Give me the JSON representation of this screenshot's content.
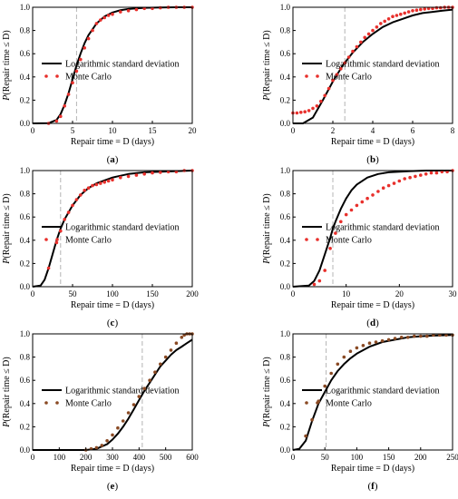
{
  "chart_data": [
    {
      "type": "line",
      "label": "(a)",
      "xlabel": "Repair time = D (days)",
      "ylabel": "P(Repair time ≤ D)",
      "xlim": [
        0,
        20
      ],
      "xticks": [
        0,
        5,
        10,
        15,
        20
      ],
      "ylim": [
        0,
        1
      ],
      "yticks": [
        0.0,
        0.2,
        0.4,
        0.6,
        0.8,
        1.0
      ],
      "median_line": 5.5,
      "legend_position": "center-right",
      "mc_color": "#e8302c",
      "series": [
        {
          "name": "Logarithmic standard deviation",
          "style": "line",
          "x": [
            0,
            2,
            3,
            3.5,
            4,
            4.5,
            5,
            5.5,
            6,
            6.5,
            7,
            8,
            9,
            10,
            11,
            12,
            14,
            16,
            18,
            20
          ],
          "y": [
            0,
            0.002,
            0.03,
            0.08,
            0.16,
            0.26,
            0.38,
            0.5,
            0.6,
            0.69,
            0.76,
            0.86,
            0.92,
            0.955,
            0.975,
            0.985,
            0.995,
            0.998,
            1,
            1
          ]
        },
        {
          "name": "Monte Carlo",
          "style": "dots",
          "x": [
            2,
            3,
            3.5,
            4,
            4.5,
            5,
            5.5,
            6,
            6.5,
            7,
            7.5,
            8,
            8.5,
            9,
            9.5,
            10,
            11,
            12,
            13,
            14,
            15,
            16,
            17,
            18,
            19,
            20
          ],
          "y": [
            0,
            0.02,
            0.06,
            0.15,
            0.25,
            0.35,
            0.45,
            0.55,
            0.65,
            0.73,
            0.8,
            0.86,
            0.89,
            0.91,
            0.93,
            0.94,
            0.96,
            0.97,
            0.98,
            0.99,
            0.99,
            0.995,
            1,
            1,
            1,
            1
          ]
        }
      ]
    },
    {
      "type": "line",
      "label": "(b)",
      "xlabel": "Repair time = D (days)",
      "ylabel": "P(Repair time ≤ D)",
      "xlim": [
        0,
        8
      ],
      "xticks": [
        0,
        2,
        4,
        6,
        8
      ],
      "ylim": [
        0,
        1
      ],
      "yticks": [
        0.0,
        0.2,
        0.4,
        0.6,
        0.8,
        1.0
      ],
      "median_line": 2.6,
      "legend_position": "center-right",
      "mc_color": "#e8302c",
      "series": [
        {
          "name": "Logarithmic standard deviation",
          "style": "line",
          "x": [
            0,
            0.5,
            1,
            1.5,
            2,
            2.5,
            3,
            3.5,
            4,
            4.5,
            5,
            5.5,
            6,
            6.5,
            7,
            7.5,
            8
          ],
          "y": [
            0,
            0,
            0.05,
            0.2,
            0.36,
            0.5,
            0.61,
            0.7,
            0.77,
            0.83,
            0.87,
            0.9,
            0.93,
            0.95,
            0.96,
            0.97,
            0.98
          ]
        },
        {
          "name": "Monte Carlo",
          "style": "dots",
          "x": [
            0,
            0.2,
            0.4,
            0.6,
            0.8,
            1,
            1.2,
            1.4,
            1.6,
            1.8,
            2,
            2.2,
            2.4,
            2.6,
            2.8,
            3,
            3.2,
            3.4,
            3.6,
            3.8,
            4,
            4.2,
            4.4,
            4.6,
            4.8,
            5,
            5.2,
            5.4,
            5.6,
            5.8,
            6,
            6.2,
            6.4,
            6.6,
            6.8,
            7,
            7.2,
            7.4,
            7.6,
            7.8,
            8
          ],
          "y": [
            0.09,
            0.09,
            0.095,
            0.1,
            0.11,
            0.13,
            0.15,
            0.19,
            0.24,
            0.3,
            0.37,
            0.42,
            0.47,
            0.52,
            0.57,
            0.62,
            0.66,
            0.7,
            0.74,
            0.77,
            0.8,
            0.83,
            0.86,
            0.88,
            0.9,
            0.92,
            0.93,
            0.94,
            0.95,
            0.96,
            0.97,
            0.975,
            0.98,
            0.985,
            0.99,
            0.99,
            0.995,
            0.995,
            1,
            1,
            1
          ]
        }
      ]
    },
    {
      "type": "line",
      "label": "(c)",
      "xlabel": "Repair time = D (days)",
      "ylabel": "P(Repair time ≤ D)",
      "xlim": [
        0,
        200
      ],
      "xticks": [
        0,
        50,
        100,
        150,
        200
      ],
      "ylim": [
        0,
        1
      ],
      "yticks": [
        0.0,
        0.2,
        0.4,
        0.6,
        0.8,
        1.0
      ],
      "median_line": 35,
      "legend_position": "center-right",
      "mc_color": "#e8302c",
      "series": [
        {
          "name": "Logarithmic standard deviation",
          "style": "line",
          "x": [
            0,
            10,
            15,
            20,
            25,
            30,
            35,
            40,
            50,
            60,
            70,
            80,
            100,
            120,
            140,
            160,
            180,
            200
          ],
          "y": [
            0,
            0.01,
            0.06,
            0.16,
            0.28,
            0.4,
            0.5,
            0.58,
            0.7,
            0.79,
            0.85,
            0.89,
            0.94,
            0.97,
            0.985,
            0.99,
            0.995,
            1
          ]
        },
        {
          "name": "Monte Carlo",
          "style": "dots",
          "x": [
            20,
            30,
            35,
            40,
            45,
            50,
            55,
            60,
            65,
            70,
            75,
            80,
            85,
            90,
            95,
            100,
            110,
            120,
            130,
            140,
            150,
            160,
            170,
            180,
            190,
            200
          ],
          "y": [
            0.16,
            0.38,
            0.48,
            0.58,
            0.64,
            0.7,
            0.75,
            0.79,
            0.83,
            0.85,
            0.87,
            0.88,
            0.89,
            0.9,
            0.91,
            0.92,
            0.94,
            0.95,
            0.96,
            0.97,
            0.98,
            0.985,
            0.99,
            0.99,
            1,
            1
          ]
        }
      ]
    },
    {
      "type": "line",
      "label": "(d)",
      "xlabel": "Repair time = D (days)",
      "ylabel": "P(Repair time ≤ D)",
      "xlim": [
        0,
        30
      ],
      "xticks": [
        0,
        10,
        20,
        30
      ],
      "ylim": [
        0,
        1
      ],
      "yticks": [
        0.0,
        0.2,
        0.4,
        0.6,
        0.8,
        1.0
      ],
      "median_line": 7.5,
      "legend_position": "center-right",
      "mc_color": "#e8302c",
      "series": [
        {
          "name": "Logarithmic standard deviation",
          "style": "line",
          "x": [
            0,
            3,
            4,
            5,
            6,
            7,
            7.5,
            8,
            9,
            10,
            11,
            12,
            14,
            16,
            18,
            20,
            22,
            25,
            30
          ],
          "y": [
            0,
            0.01,
            0.05,
            0.14,
            0.28,
            0.42,
            0.5,
            0.56,
            0.67,
            0.76,
            0.83,
            0.88,
            0.94,
            0.97,
            0.985,
            0.99,
            0.995,
            1,
            1
          ]
        },
        {
          "name": "Monte Carlo",
          "style": "dots",
          "x": [
            4,
            5,
            6,
            7,
            8,
            9,
            10,
            11,
            12,
            13,
            14,
            15,
            16,
            17,
            18,
            19,
            20,
            21,
            22,
            23,
            24,
            25,
            26,
            27,
            28,
            29,
            30
          ],
          "y": [
            0.02,
            0.05,
            0.14,
            0.33,
            0.46,
            0.56,
            0.62,
            0.66,
            0.7,
            0.73,
            0.76,
            0.79,
            0.82,
            0.85,
            0.87,
            0.89,
            0.91,
            0.93,
            0.94,
            0.95,
            0.96,
            0.97,
            0.98,
            0.98,
            0.99,
            0.99,
            1
          ]
        }
      ]
    },
    {
      "type": "line",
      "label": "(e)",
      "xlabel": "Repair time = D (days)",
      "ylabel": "P(Repair time ≤ D)",
      "xlim": [
        0,
        600
      ],
      "xticks": [
        0,
        100,
        200,
        300,
        400,
        500,
        600
      ],
      "ylim": [
        0,
        1
      ],
      "yticks": [
        0.0,
        0.2,
        0.4,
        0.6,
        0.8,
        1.0
      ],
      "median_line": 412,
      "legend_position": "center-right",
      "mc_color": "#8a4a24",
      "series": [
        {
          "name": "Logarithmic standard deviation",
          "style": "line",
          "x": [
            0,
            200,
            240,
            280,
            300,
            320,
            340,
            360,
            380,
            400,
            420,
            440,
            460,
            480,
            500,
            520,
            540,
            560,
            580,
            600
          ],
          "y": [
            0,
            0,
            0.01,
            0.05,
            0.09,
            0.14,
            0.2,
            0.27,
            0.35,
            0.43,
            0.51,
            0.58,
            0.65,
            0.72,
            0.77,
            0.82,
            0.86,
            0.89,
            0.92,
            0.95
          ]
        },
        {
          "name": "Monte Carlo",
          "style": "dots",
          "x": [
            200,
            220,
            240,
            260,
            280,
            300,
            320,
            340,
            360,
            380,
            400,
            420,
            440,
            460,
            480,
            500,
            520,
            540,
            560,
            570,
            580,
            590,
            600
          ],
          "y": [
            0,
            0.01,
            0.02,
            0.04,
            0.08,
            0.13,
            0.19,
            0.25,
            0.32,
            0.39,
            0.46,
            0.53,
            0.6,
            0.67,
            0.74,
            0.8,
            0.86,
            0.92,
            0.97,
            0.99,
            1,
            1,
            1
          ]
        }
      ]
    },
    {
      "type": "line",
      "label": "(f)",
      "xlabel": "Repair time = D (days)",
      "ylabel": "P(Repair time ≤ D)",
      "xlim": [
        0,
        250
      ],
      "xticks": [
        0,
        50,
        100,
        150,
        200,
        250
      ],
      "ylim": [
        0,
        1
      ],
      "yticks": [
        0.0,
        0.2,
        0.4,
        0.6,
        0.8,
        1.0
      ],
      "median_line": 52,
      "legend_position": "center-right",
      "mc_color": "#8a4a24",
      "series": [
        {
          "name": "Logarithmic standard deviation",
          "style": "line",
          "x": [
            0,
            10,
            20,
            30,
            40,
            50,
            60,
            70,
            80,
            90,
            100,
            120,
            140,
            160,
            180,
            200,
            220,
            250
          ],
          "y": [
            0,
            0.01,
            0.08,
            0.25,
            0.4,
            0.5,
            0.6,
            0.68,
            0.74,
            0.79,
            0.83,
            0.89,
            0.93,
            0.95,
            0.97,
            0.98,
            0.985,
            0.99
          ]
        },
        {
          "name": "Monte Carlo",
          "style": "dots",
          "x": [
            20,
            30,
            40,
            50,
            60,
            70,
            80,
            90,
            100,
            110,
            120,
            130,
            140,
            150,
            160,
            170,
            180,
            190,
            200,
            210,
            220,
            230,
            240,
            250
          ],
          "y": [
            0.12,
            0.26,
            0.42,
            0.55,
            0.66,
            0.74,
            0.8,
            0.85,
            0.88,
            0.9,
            0.92,
            0.93,
            0.94,
            0.95,
            0.96,
            0.97,
            0.97,
            0.98,
            0.98,
            0.98,
            0.99,
            0.99,
            0.99,
            0.99
          ]
        }
      ]
    }
  ]
}
